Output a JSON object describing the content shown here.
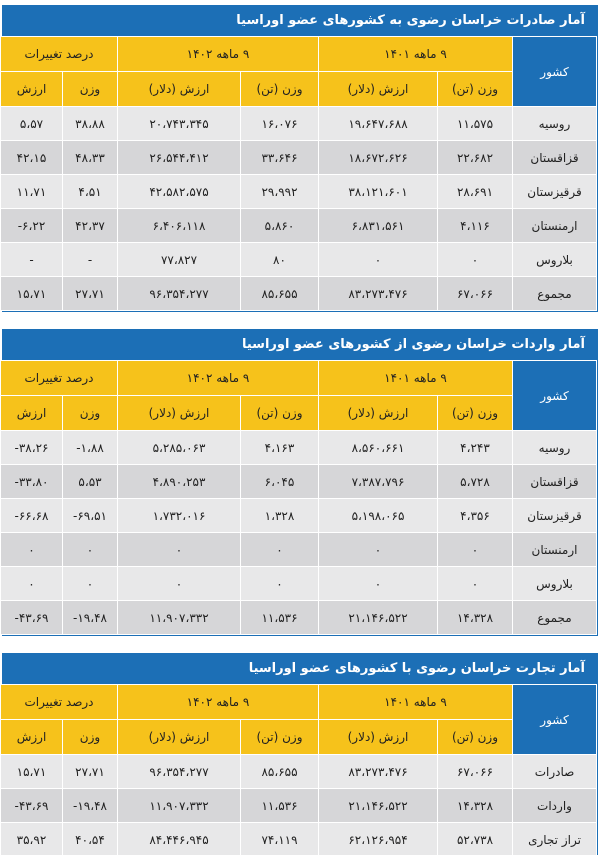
{
  "tables": [
    {
      "title": "آمار صادرات خراسان رضوی به کشورهای عضو اوراسیا",
      "country_header": "کشور",
      "groups": [
        "۹ ماهه ۱۴۰۱",
        "۹ ماهه ۱۴۰۲",
        "درصد تغییرات"
      ],
      "sub_headers": [
        "وزن (تن)",
        "ارزش (دلار)",
        "وزن (تن)",
        "ارزش (دلار)",
        "وزن",
        "ارزش"
      ],
      "rows": [
        [
          "روسیه",
          "۱۱،۵۷۵",
          "۱۹،۶۴۷،۶۸۸",
          "۱۶،۰۷۶",
          "۲۰،۷۴۳،۳۴۵",
          "۳۸،۸۸",
          "۵،۵۷"
        ],
        [
          "قزاقستان",
          "۲۲،۶۸۲",
          "۱۸،۶۷۲،۶۲۶",
          "۳۳،۶۴۶",
          "۲۶،۵۴۴،۴۱۲",
          "۴۸،۳۳",
          "۴۲،۱۵"
        ],
        [
          "قرقیزستان",
          "۲۸،۶۹۱",
          "۳۸،۱۲۱،۶۰۱",
          "۲۹،۹۹۲",
          "۴۲،۵۸۲،۵۷۵",
          "۴،۵۱",
          "۱۱،۷۱"
        ],
        [
          "ارمنستان",
          "۴،۱۱۶",
          "۶،۸۳۱،۵۶۱",
          "۵،۸۶۰",
          "۶،۴۰۶،۱۱۸",
          "۴۲،۳۷",
          "-۶،۲۲"
        ],
        [
          "بلاروس",
          "۰",
          "۰",
          "۸۰",
          "۷۷،۸۲۷",
          "-",
          "-"
        ],
        [
          "مجموع",
          "۶۷،۰۶۶",
          "۸۳،۲۷۳،۴۷۶",
          "۸۵،۶۵۵",
          "۹۶،۳۵۴،۲۷۷",
          "۲۷،۷۱",
          "۱۵،۷۱"
        ]
      ]
    },
    {
      "title": "آمار واردات خراسان رضوی از کشورهای عضو اوراسیا",
      "country_header": "کشور",
      "groups": [
        "۹ ماهه ۱۴۰۱",
        "۹ ماهه ۱۴۰۲",
        "درصد تغییرات"
      ],
      "sub_headers": [
        "وزن (تن)",
        "ارزش (دلار)",
        "وزن (تن)",
        "ارزش (دلار)",
        "وزن",
        "ارزش"
      ],
      "rows": [
        [
          "روسیه",
          "۴،۲۴۳",
          "۸،۵۶۰،۶۶۱",
          "۴،۱۶۳",
          "۵،۲۸۵،۰۶۳",
          "-۱،۸۸",
          "-۳۸،۲۶"
        ],
        [
          "قزاقستان",
          "۵،۷۲۸",
          "۷،۳۸۷،۷۹۶",
          "۶،۰۴۵",
          "۴،۸۹۰،۲۵۳",
          "۵،۵۳",
          "-۳۳،۸۰"
        ],
        [
          "قرقیزستان",
          "۴،۳۵۶",
          "۵،۱۹۸،۰۶۵",
          "۱،۳۲۸",
          "۱،۷۳۲،۰۱۶",
          "-۶۹،۵۱",
          "-۶۶،۶۸"
        ],
        [
          "ارمنستان",
          "۰",
          "۰",
          "۰",
          "۰",
          "۰",
          "۰"
        ],
        [
          "بلاروس",
          "۰",
          "۰",
          "۰",
          "۰",
          "۰",
          "۰"
        ],
        [
          "مجموع",
          "۱۴،۳۲۸",
          "۲۱،۱۴۶،۵۲۲",
          "۱۱،۵۳۶",
          "۱۱،۹۰۷،۳۳۲",
          "-۱۹،۴۸",
          "-۴۳،۶۹"
        ]
      ]
    },
    {
      "title": "آمار تجارت خراسان رضوی با کشورهای عضو اوراسیا",
      "country_header": "کشور",
      "groups": [
        "۹ ماهه ۱۴۰۱",
        "۹ ماهه ۱۴۰۲",
        "درصد تغییرات"
      ],
      "sub_headers": [
        "وزن (تن)",
        "ارزش (دلار)",
        "وزن (تن)",
        "ارزش (دلار)",
        "وزن",
        "ارزش"
      ],
      "rows": [
        [
          "صادرات",
          "۶۷،۰۶۶",
          "۸۳،۲۷۳،۴۷۶",
          "۸۵،۶۵۵",
          "۹۶،۳۵۴،۲۷۷",
          "۲۷،۷۱",
          "۱۵،۷۱"
        ],
        [
          "واردات",
          "۱۴،۳۲۸",
          "۲۱،۱۴۶،۵۲۲",
          "۱۱،۵۳۶",
          "۱۱،۹۰۷،۳۳۲",
          "-۱۹،۴۸",
          "-۴۳،۶۹"
        ],
        [
          "تراز تجاری",
          "۵۲،۷۳۸",
          "۶۲،۱۲۶،۹۵۴",
          "۷۴،۱۱۹",
          "۸۴،۴۴۶،۹۴۵",
          "۴۰،۵۴",
          "۳۵،۹۲"
        ]
      ]
    }
  ]
}
